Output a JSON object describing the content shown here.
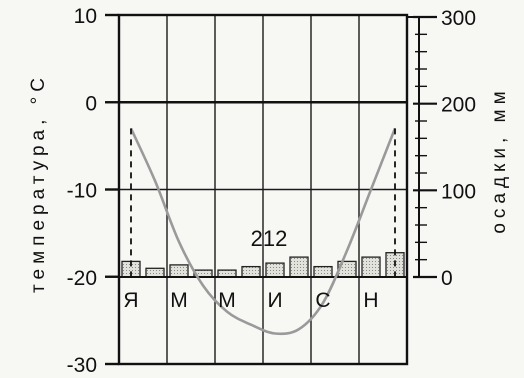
{
  "chart_data": {
    "type": "line",
    "left_axis": {
      "title": "температура, °С",
      "range": [
        -30,
        10
      ],
      "ticks": [
        "10",
        "0",
        "-10",
        "-20",
        "-30"
      ],
      "tick_values": [
        10,
        0,
        -10,
        -20,
        -30
      ]
    },
    "right_axis": {
      "title": "осадки, мм",
      "range": [
        0,
        300
      ],
      "ticks": [
        "300",
        "200",
        "100",
        "0"
      ],
      "tick_values": [
        300,
        200,
        100,
        0
      ]
    },
    "month_labels": [
      "Я",
      "М",
      "М",
      "И",
      "С",
      "Н"
    ],
    "months": [
      1,
      2,
      3,
      4,
      5,
      6,
      7,
      8,
      9,
      10,
      11,
      12
    ],
    "series": [
      {
        "kind": "line",
        "axis": "left",
        "values": [
          -3,
          -9,
          -16,
          -21,
          -24,
          -25.5,
          -26.5,
          -26,
          -23,
          -17,
          -10,
          -3
        ],
        "color": "#9a9a9a"
      },
      {
        "kind": "bar",
        "axis": "right",
        "values": [
          18,
          10,
          14,
          8,
          8,
          12,
          16,
          23,
          12,
          18,
          23,
          28
        ],
        "color": "#d8d8d2"
      }
    ],
    "annotations": [
      {
        "text": "212"
      }
    ],
    "grid": true
  }
}
